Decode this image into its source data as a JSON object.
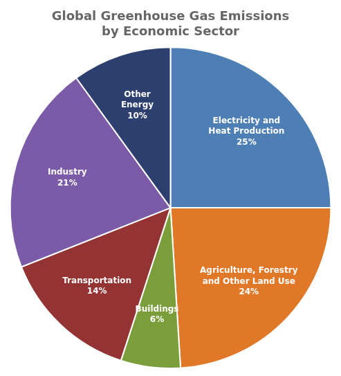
{
  "chart_data": {
    "type": "pie",
    "title": "Global Greenhouse Gas Emissions\nby Economic Sector",
    "categories": [
      "Electricity and\nHeat Production",
      "Agriculture, Forestry\nand Other Land Use",
      "Buildings",
      "Transportation",
      "Industry",
      "Other\nEnergy"
    ],
    "values": [
      25,
      24,
      6,
      14,
      21,
      10
    ],
    "value_labels": [
      "25%",
      "24%",
      "6%",
      "14%",
      "21%",
      "10%"
    ],
    "colors": [
      "#4d7fb5",
      "#e07828",
      "#7b9e3b",
      "#943333",
      "#7b5aa8",
      "#2d3f6e"
    ],
    "data_labels": true,
    "legend": false
  }
}
